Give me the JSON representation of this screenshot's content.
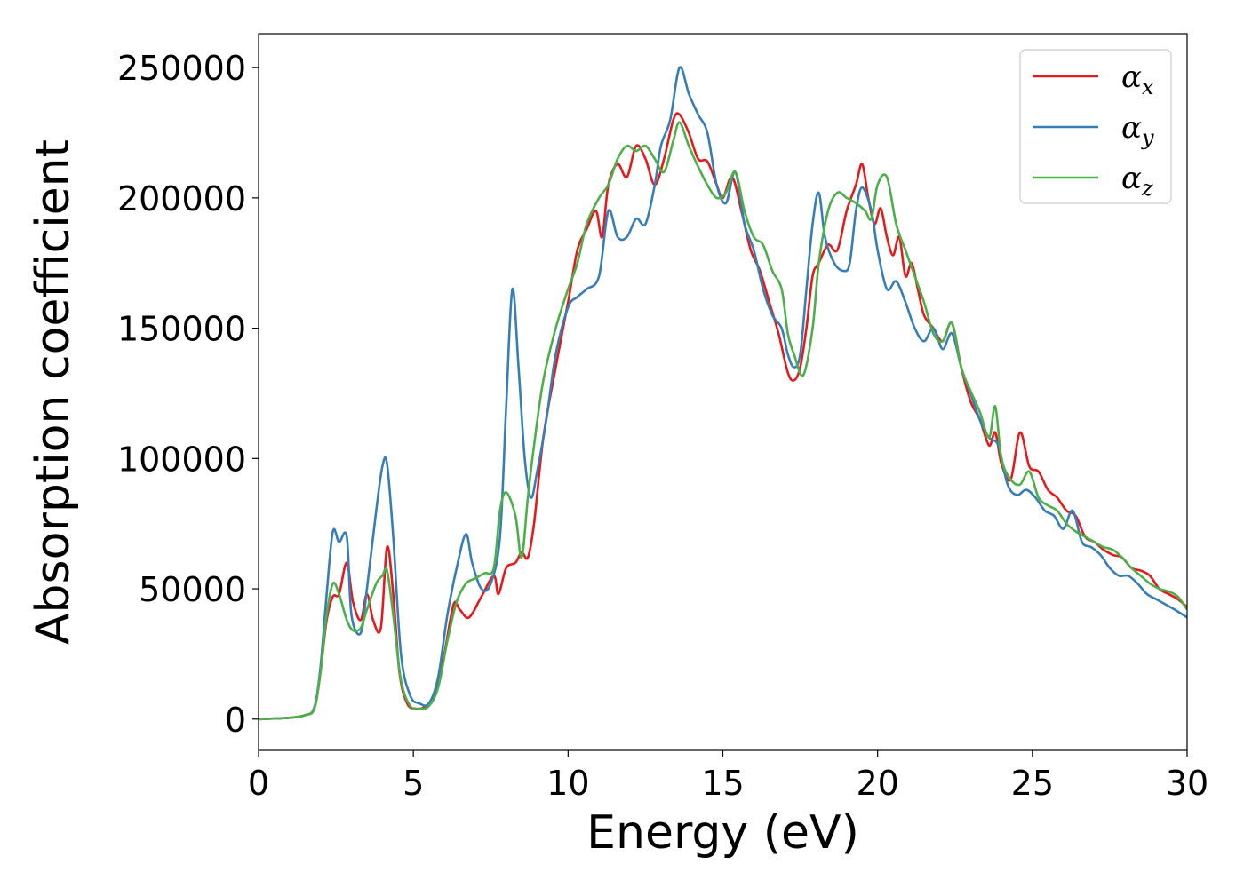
{
  "chart_data": {
    "type": "line",
    "xlabel": "Energy (eV)",
    "ylabel": "Absorption coefficient",
    "xlim": [
      0,
      30
    ],
    "ylim": [
      -12000,
      263000
    ],
    "xticks": [
      0,
      5,
      10,
      15,
      20,
      25,
      30
    ],
    "yticks": [
      0,
      50000,
      100000,
      150000,
      200000,
      250000
    ],
    "xtick_labels": [
      "0",
      "5",
      "10",
      "15",
      "20",
      "25",
      "30"
    ],
    "ytick_labels": [
      "0",
      "50000",
      "100000",
      "150000",
      "200000",
      "250000"
    ],
    "grid": false,
    "legend_position": "top-right",
    "legend": [
      {
        "base": "α",
        "sub": "x",
        "color": "#e41a1c"
      },
      {
        "base": "α",
        "sub": "y",
        "color": "#377eb8"
      },
      {
        "base": "α",
        "sub": "z",
        "color": "#4daf4a"
      }
    ],
    "series": [
      {
        "name": "αx",
        "color": "#e41a1c",
        "x": [
          0,
          1,
          1.5,
          1.8,
          2.0,
          2.2,
          2.4,
          2.6,
          2.85,
          3.05,
          3.3,
          3.5,
          3.7,
          3.95,
          4.15,
          4.35,
          4.55,
          4.8,
          5.1,
          5.4,
          5.7,
          6.0,
          6.3,
          6.5,
          6.8,
          7.2,
          7.6,
          7.75,
          8.0,
          8.3,
          8.5,
          8.7,
          8.9,
          9.2,
          9.6,
          10.0,
          10.3,
          10.6,
          10.9,
          11.1,
          11.3,
          11.6,
          11.9,
          12.2,
          12.5,
          12.8,
          13.1,
          13.4,
          13.6,
          13.9,
          14.2,
          14.5,
          14.8,
          15.0,
          15.3,
          15.6,
          15.9,
          16.2,
          16.5,
          16.8,
          17.1,
          17.3,
          17.5,
          17.7,
          17.9,
          18.1,
          18.4,
          18.7,
          19.0,
          19.3,
          19.5,
          19.7,
          19.9,
          20.1,
          20.3,
          20.5,
          20.7,
          20.9,
          21.1,
          21.3,
          21.5,
          21.8,
          22.1,
          22.4,
          22.7,
          23.0,
          23.3,
          23.6,
          23.8,
          24.0,
          24.3,
          24.6,
          24.9,
          25.2,
          25.5,
          25.8,
          26.1,
          26.4,
          26.7,
          27.0,
          27.3,
          27.6,
          27.9,
          28.2,
          28.5,
          28.8,
          29.1,
          29.4,
          29.7,
          30.0
        ],
        "y": [
          0,
          500,
          1500,
          4000,
          18000,
          38000,
          47000,
          48000,
          60000,
          45000,
          38000,
          48000,
          38000,
          35000,
          66000,
          48000,
          18000,
          6000,
          4000,
          5000,
          10000,
          25000,
          44000,
          42000,
          39000,
          47000,
          55000,
          48000,
          58000,
          60000,
          64000,
          62000,
          75000,
          108000,
          135000,
          160000,
          180000,
          188000,
          195000,
          185000,
          205000,
          213000,
          208000,
          220000,
          215000,
          205000,
          215000,
          230000,
          232000,
          225000,
          215000,
          214000,
          205000,
          200000,
          208000,
          195000,
          180000,
          172000,
          160000,
          148000,
          133000,
          130000,
          135000,
          150000,
          170000,
          175000,
          182000,
          180000,
          195000,
          205000,
          213000,
          200000,
          190000,
          196000,
          185000,
          178000,
          185000,
          170000,
          175000,
          165000,
          155000,
          150000,
          145000,
          152000,
          135000,
          122000,
          115000,
          105000,
          110000,
          98000,
          92000,
          110000,
          97000,
          95000,
          88000,
          85000,
          80000,
          78000,
          70000,
          68000,
          65000,
          63000,
          62000,
          58000,
          57000,
          55000,
          50000,
          48000,
          46000,
          43000
        ]
      },
      {
        "name": "αy",
        "color": "#377eb8",
        "x": [
          0,
          1,
          1.5,
          1.8,
          2.0,
          2.2,
          2.4,
          2.6,
          2.85,
          3.0,
          3.3,
          3.5,
          3.8,
          4.0,
          4.15,
          4.35,
          4.6,
          4.9,
          5.2,
          5.5,
          5.8,
          6.1,
          6.4,
          6.7,
          6.9,
          7.2,
          7.5,
          7.8,
          8.0,
          8.2,
          8.4,
          8.6,
          8.8,
          9.0,
          9.3,
          9.6,
          10.0,
          10.3,
          10.6,
          11.0,
          11.3,
          11.6,
          11.9,
          12.2,
          12.5,
          12.8,
          13.0,
          13.3,
          13.6,
          13.9,
          14.2,
          14.5,
          14.8,
          15.1,
          15.4,
          15.7,
          16.0,
          16.3,
          16.6,
          16.9,
          17.1,
          17.3,
          17.5,
          17.7,
          17.9,
          18.1,
          18.3,
          18.6,
          18.9,
          19.1,
          19.3,
          19.5,
          19.8,
          20.0,
          20.3,
          20.6,
          20.9,
          21.2,
          21.5,
          21.8,
          22.1,
          22.4,
          22.7,
          23.0,
          23.3,
          23.6,
          23.9,
          24.2,
          24.5,
          24.8,
          25.1,
          25.4,
          25.7,
          26.0,
          26.3,
          26.6,
          26.9,
          27.2,
          27.5,
          27.8,
          28.1,
          28.4,
          28.7,
          29.0,
          29.3,
          29.6,
          30.0
        ],
        "y": [
          0,
          500,
          1500,
          4500,
          20000,
          48000,
          72000,
          68000,
          70000,
          40000,
          33000,
          50000,
          80000,
          97000,
          98000,
          70000,
          25000,
          9000,
          6000,
          6000,
          16000,
          40000,
          58000,
          71000,
          60000,
          50000,
          52000,
          70000,
          120000,
          165000,
          135000,
          100000,
          85000,
          95000,
          115000,
          140000,
          158000,
          162000,
          165000,
          170000,
          195000,
          185000,
          185000,
          192000,
          190000,
          205000,
          220000,
          230000,
          250000,
          240000,
          232000,
          225000,
          205000,
          198000,
          210000,
          190000,
          180000,
          165000,
          155000,
          150000,
          140000,
          135000,
          140000,
          165000,
          190000,
          202000,
          185000,
          175000,
          172000,
          175000,
          195000,
          204000,
          195000,
          180000,
          165000,
          168000,
          160000,
          150000,
          145000,
          150000,
          142000,
          148000,
          135000,
          125000,
          115000,
          108000,
          105000,
          90000,
          86000,
          88000,
          85000,
          80000,
          78000,
          73000,
          80000,
          68000,
          66000,
          63000,
          58000,
          55000,
          55000,
          52000,
          48000,
          46000,
          44000,
          42000,
          39000
        ]
      },
      {
        "name": "αz",
        "color": "#4daf4a",
        "x": [
          0,
          1,
          1.5,
          1.8,
          2.0,
          2.2,
          2.4,
          2.6,
          2.85,
          3.05,
          3.3,
          3.5,
          3.8,
          4.0,
          4.15,
          4.35,
          4.6,
          4.9,
          5.2,
          5.5,
          5.8,
          6.1,
          6.4,
          6.7,
          7.0,
          7.3,
          7.6,
          7.8,
          8.0,
          8.3,
          8.5,
          8.7,
          8.9,
          9.2,
          9.6,
          10.0,
          10.3,
          10.6,
          11.0,
          11.3,
          11.6,
          11.9,
          12.2,
          12.5,
          12.8,
          13.1,
          13.4,
          13.6,
          13.9,
          14.2,
          14.5,
          14.8,
          15.1,
          15.4,
          15.7,
          16.0,
          16.3,
          16.6,
          16.9,
          17.1,
          17.3,
          17.6,
          17.9,
          18.1,
          18.4,
          18.7,
          19.0,
          19.3,
          19.6,
          19.8,
          20.0,
          20.3,
          20.6,
          20.9,
          21.2,
          21.5,
          21.8,
          22.1,
          22.4,
          22.7,
          23.0,
          23.3,
          23.6,
          23.8,
          24.0,
          24.3,
          24.6,
          24.9,
          25.2,
          25.5,
          25.8,
          26.1,
          26.4,
          26.7,
          27.0,
          27.3,
          27.6,
          27.9,
          28.2,
          28.5,
          28.8,
          29.1,
          29.4,
          29.7,
          30.0
        ],
        "y": [
          0,
          500,
          1500,
          4000,
          18000,
          40000,
          52000,
          48000,
          38000,
          34000,
          35000,
          42000,
          52000,
          55000,
          57000,
          40000,
          15000,
          5000,
          4000,
          5000,
          12000,
          30000,
          45000,
          52000,
          54000,
          56000,
          58000,
          80000,
          87000,
          78000,
          62000,
          85000,
          105000,
          130000,
          150000,
          165000,
          175000,
          190000,
          200000,
          205000,
          215000,
          220000,
          218000,
          220000,
          215000,
          210000,
          222000,
          229000,
          220000,
          212000,
          205000,
          200000,
          202000,
          210000,
          195000,
          185000,
          182000,
          172000,
          165000,
          148000,
          140000,
          132000,
          150000,
          175000,
          195000,
          202000,
          200000,
          198000,
          195000,
          192000,
          205000,
          208000,
          190000,
          180000,
          170000,
          160000,
          148000,
          145000,
          152000,
          135000,
          126000,
          118000,
          108000,
          120000,
          100000,
          92000,
          90000,
          95000,
          85000,
          82000,
          80000,
          75000,
          72000,
          70000,
          68000,
          66000,
          65000,
          62000,
          58000,
          55000,
          52000,
          50000,
          49000,
          47000,
          42000
        ]
      }
    ]
  }
}
